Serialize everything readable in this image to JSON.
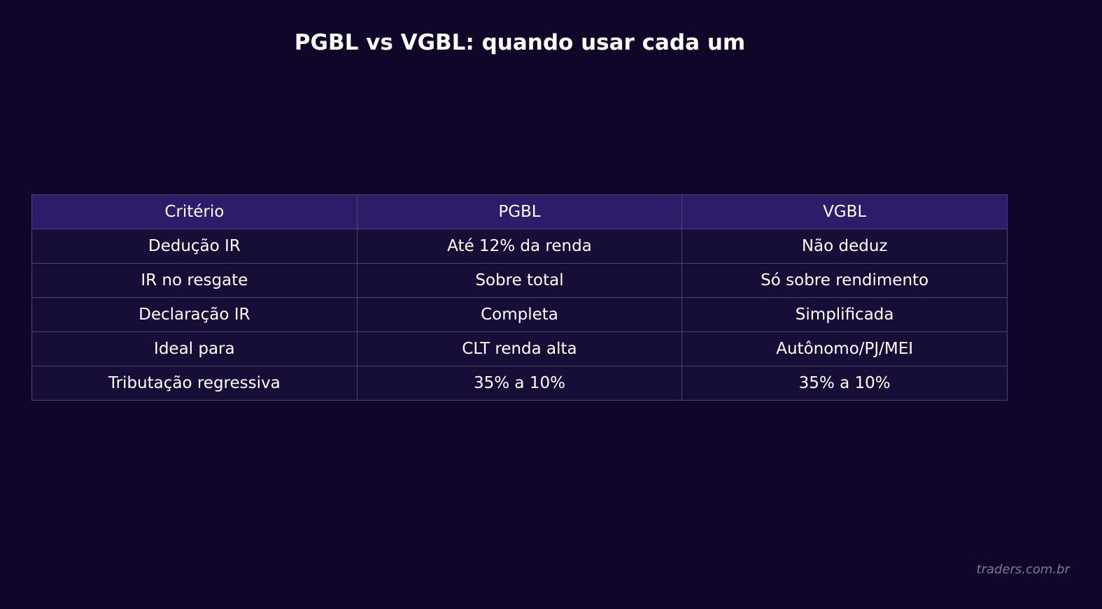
{
  "title": "PGBL vs VGBL: quando usar cada um",
  "colors": {
    "background": "#10062a",
    "header_fill": "#2c1c6a",
    "cell_fill": "#170e38",
    "grid_line": "#4c4470",
    "text": "#ffffff",
    "watermark_text": "#7f7895"
  },
  "chart_data": {
    "type": "table",
    "title": "PGBL vs VGBL: quando usar cada um",
    "columns": [
      "Critério",
      "PGBL",
      "VGBL"
    ],
    "rows": [
      [
        "Dedução IR",
        "Até 12% da renda",
        "Não deduz"
      ],
      [
        "IR no resgate",
        "Sobre total",
        "Só sobre rendimento"
      ],
      [
        "Declaração IR",
        "Completa",
        "Simplificada"
      ],
      [
        "Ideal para",
        "CLT renda alta",
        "Autônomo/PJ/MEI"
      ],
      [
        "Tributação regressiva",
        "35% a 10%",
        "35% a 10%"
      ]
    ]
  },
  "watermark": "traders.com.br"
}
